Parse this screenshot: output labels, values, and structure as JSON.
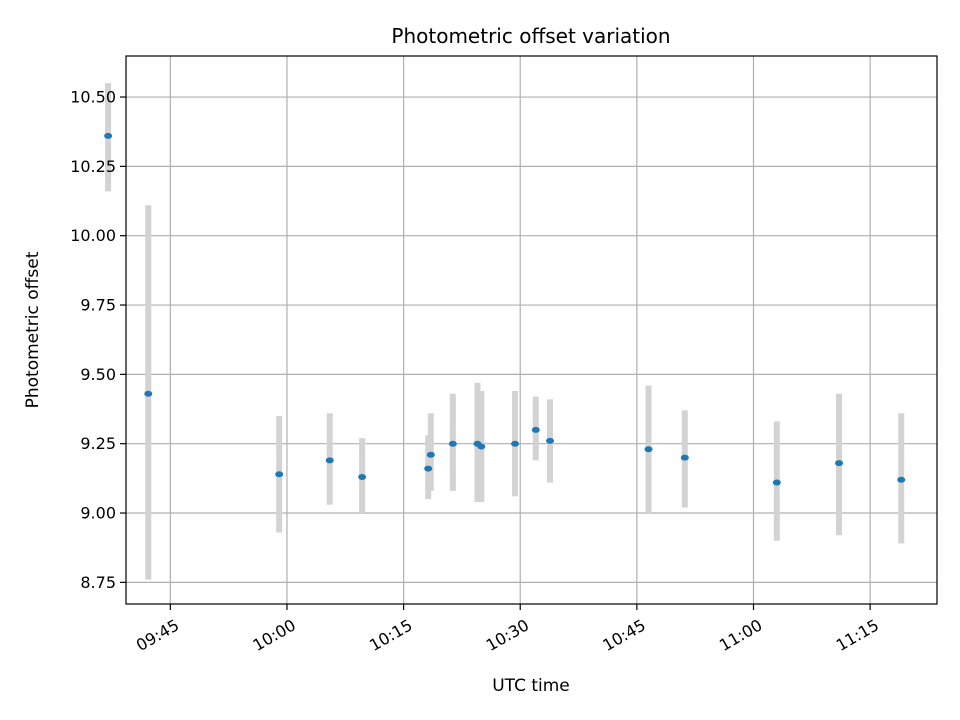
{
  "chart_data": {
    "type": "scatter",
    "title": "Photometric offset variation",
    "xlabel": "UTC time",
    "ylabel": "Photometric offset",
    "xlim": [
      "09:39:18",
      "11:23:36"
    ],
    "ylim": [
      8.672,
      10.648
    ],
    "grid": true,
    "x_ticks": [
      "09:45",
      "10:00",
      "10:15",
      "10:30",
      "10:45",
      "11:00",
      "11:15"
    ],
    "y_ticks": [
      "8.75",
      "9.00",
      "9.25",
      "9.50",
      "9.75",
      "10.00",
      "10.25",
      "10.50"
    ],
    "points": [
      {
        "x": "09:37:00",
        "y": 10.36,
        "err_low": 10.16,
        "err_high": 10.55
      },
      {
        "x": "09:42:10",
        "y": 9.43,
        "err_low": 8.76,
        "err_high": 10.11
      },
      {
        "x": "09:59:00",
        "y": 9.14,
        "err_low": 8.93,
        "err_high": 9.35
      },
      {
        "x": "10:05:30",
        "y": 9.19,
        "err_low": 9.03,
        "err_high": 9.36
      },
      {
        "x": "10:09:40",
        "y": 9.13,
        "err_low": 9.0,
        "err_high": 9.27
      },
      {
        "x": "10:18:10",
        "y": 9.16,
        "err_low": 9.05,
        "err_high": 9.28
      },
      {
        "x": "10:18:30",
        "y": 9.21,
        "err_low": 9.08,
        "err_high": 9.36
      },
      {
        "x": "10:21:20",
        "y": 9.25,
        "err_low": 9.08,
        "err_high": 9.43
      },
      {
        "x": "10:24:30",
        "y": 9.25,
        "err_low": 9.04,
        "err_high": 9.47
      },
      {
        "x": "10:25:00",
        "y": 9.24,
        "err_low": 9.04,
        "err_high": 9.44
      },
      {
        "x": "10:29:20",
        "y": 9.25,
        "err_low": 9.06,
        "err_high": 9.44
      },
      {
        "x": "10:32:00",
        "y": 9.3,
        "err_low": 9.19,
        "err_high": 9.42
      },
      {
        "x": "10:33:50",
        "y": 9.26,
        "err_low": 9.11,
        "err_high": 9.41
      },
      {
        "x": "10:46:30",
        "y": 9.23,
        "err_low": 9.0,
        "err_high": 9.46
      },
      {
        "x": "10:51:10",
        "y": 9.2,
        "err_low": 9.02,
        "err_high": 9.37
      },
      {
        "x": "11:03:00",
        "y": 9.11,
        "err_low": 8.9,
        "err_high": 9.33
      },
      {
        "x": "11:11:00",
        "y": 9.18,
        "err_low": 8.92,
        "err_high": 9.43
      },
      {
        "x": "11:19:00",
        "y": 9.12,
        "err_low": 8.89,
        "err_high": 9.36
      }
    ],
    "colors": {
      "point": "#1f77b4",
      "errorbar": "#d3d3d3",
      "grid": "#b0b0b0",
      "axis": "#000000"
    }
  }
}
